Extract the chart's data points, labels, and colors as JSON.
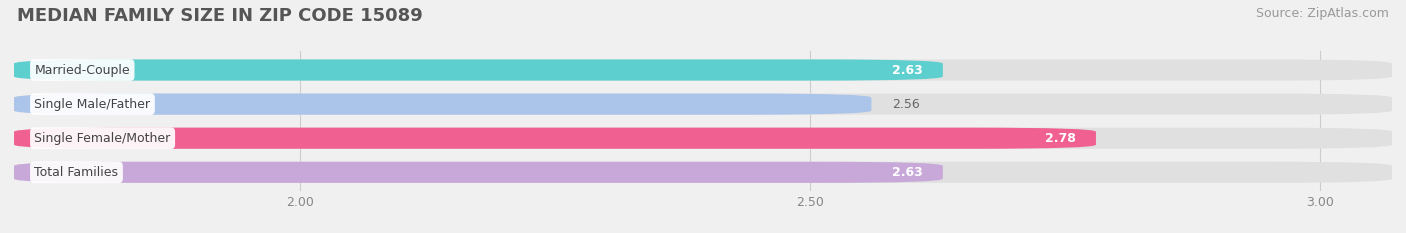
{
  "title": "MEDIAN FAMILY SIZE IN ZIP CODE 15089",
  "source": "Source: ZipAtlas.com",
  "categories": [
    "Married-Couple",
    "Single Male/Father",
    "Single Female/Mother",
    "Total Families"
  ],
  "values": [
    2.63,
    2.56,
    2.78,
    2.63
  ],
  "bar_colors": [
    "#5ecfcf",
    "#aac4ea",
    "#f06090",
    "#c8a8d8"
  ],
  "value_inside": [
    true,
    false,
    true,
    true
  ],
  "xlim_left": 1.72,
  "xlim_right": 3.07,
  "xticks": [
    2.0,
    2.5,
    3.0
  ],
  "xtick_labels": [
    "2.00",
    "2.50",
    "3.00"
  ],
  "background_color": "#f0f0f0",
  "bar_background_color": "#e0e0e0",
  "title_fontsize": 13,
  "source_fontsize": 9,
  "label_fontsize": 9,
  "value_fontsize": 9
}
